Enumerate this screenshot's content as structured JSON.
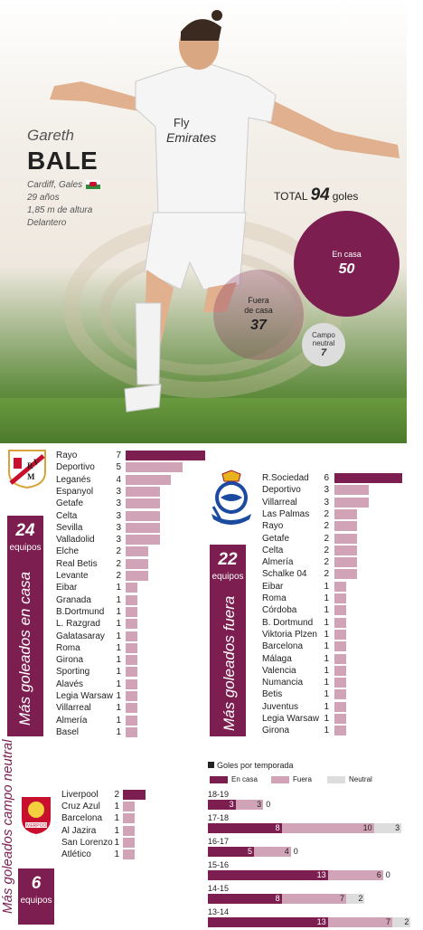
{
  "player": {
    "first_name": "Gareth",
    "last_name": "BALE",
    "birthplace": "Cardiff, Gales",
    "age": "29 años",
    "height": "1,85 m de altura",
    "position": "Delantero"
  },
  "total": {
    "label": "TOTAL",
    "value": "94",
    "unit": "goles"
  },
  "bubbles": {
    "home": {
      "label": "En casa",
      "value": "50"
    },
    "away": {
      "label1": "Fuera",
      "label2": "de casa",
      "value": "37"
    },
    "neutral": {
      "label1": "Campo",
      "label2": "neutral",
      "value": "7"
    }
  },
  "home_section": {
    "count": "24",
    "unit": "equipos",
    "title": "Más goleados en casa",
    "rows": [
      {
        "team": "Rayo",
        "goals": 7
      },
      {
        "team": "Deportivo",
        "goals": 5
      },
      {
        "team": "Leganés",
        "goals": 4
      },
      {
        "team": "Espanyol",
        "goals": 3
      },
      {
        "team": "Getafe",
        "goals": 3
      },
      {
        "team": "Celta",
        "goals": 3
      },
      {
        "team": "Sevilla",
        "goals": 3
      },
      {
        "team": "Valladolid",
        "goals": 3
      },
      {
        "team": "Elche",
        "goals": 2
      },
      {
        "team": "Real Betis",
        "goals": 2
      },
      {
        "team": "Levante",
        "goals": 2
      },
      {
        "team": "Eibar",
        "goals": 1
      },
      {
        "team": "Granada",
        "goals": 1
      },
      {
        "team": "B.Dortmund",
        "goals": 1
      },
      {
        "team": "L. Razgrad",
        "goals": 1
      },
      {
        "team": "Galatasaray",
        "goals": 1
      },
      {
        "team": "Roma",
        "goals": 1
      },
      {
        "team": "Girona",
        "goals": 1
      },
      {
        "team": "Sporting",
        "goals": 1
      },
      {
        "team": "Alavés",
        "goals": 1
      },
      {
        "team": "Legia Warsaw",
        "goals": 1
      },
      {
        "team": "Villarreal",
        "goals": 1
      },
      {
        "team": "Almería",
        "goals": 1
      },
      {
        "team": "Basel",
        "goals": 1
      }
    ]
  },
  "away_section": {
    "count": "22",
    "unit": "equipos",
    "title": "Más goleados fuera",
    "rows": [
      {
        "team": "R.Sociedad",
        "goals": 6
      },
      {
        "team": "Deportivo",
        "goals": 3
      },
      {
        "team": "Villarreal",
        "goals": 3
      },
      {
        "team": "Las Palmas",
        "goals": 2
      },
      {
        "team": "Rayo",
        "goals": 2
      },
      {
        "team": "Getafe",
        "goals": 2
      },
      {
        "team": "Celta",
        "goals": 2
      },
      {
        "team": "Almería",
        "goals": 2
      },
      {
        "team": "Schalke 04",
        "goals": 2
      },
      {
        "team": "Eibar",
        "goals": 1
      },
      {
        "team": "Roma",
        "goals": 1
      },
      {
        "team": "Córdoba",
        "goals": 1
      },
      {
        "team": "B. Dortmund",
        "goals": 1
      },
      {
        "team": "Viktoria Plzen",
        "goals": 1
      },
      {
        "team": "Barcelona",
        "goals": 1
      },
      {
        "team": "Málaga",
        "goals": 1
      },
      {
        "team": "Valencia",
        "goals": 1
      },
      {
        "team": "Numancia",
        "goals": 1
      },
      {
        "team": "Betis",
        "goals": 1
      },
      {
        "team": "Juventus",
        "goals": 1
      },
      {
        "team": "Legia Warsaw",
        "goals": 1
      },
      {
        "team": "Girona",
        "goals": 1
      }
    ]
  },
  "neutral_section": {
    "count": "6",
    "unit": "equipos",
    "title": "Más goleados campo neutral",
    "rows": [
      {
        "team": "Liverpool",
        "goals": 2
      },
      {
        "team": "Cruz Azul",
        "goals": 1
      },
      {
        "team": "Barcelona",
        "goals": 1
      },
      {
        "team": "Al Jazira",
        "goals": 1
      },
      {
        "team": "San Lorenzo",
        "goals": 1
      },
      {
        "team": "Atlético",
        "goals": 1
      }
    ]
  },
  "chart_data": {
    "type": "bar",
    "title": "Goles por temporada",
    "categories": [
      "18-19",
      "17-18",
      "16-17",
      "15-16",
      "14-15",
      "13-14"
    ],
    "series": [
      {
        "name": "En casa",
        "values": [
          3,
          8,
          5,
          13,
          8,
          13
        ]
      },
      {
        "name": "Fuera",
        "values": [
          3,
          10,
          4,
          6,
          7,
          7
        ]
      },
      {
        "name": "Neutral",
        "values": [
          0,
          3,
          0,
          0,
          2,
          2
        ]
      }
    ]
  },
  "colors": {
    "accent": "#7c1e4f",
    "light": "#d1a3b6",
    "neutral": "#dddddd"
  }
}
